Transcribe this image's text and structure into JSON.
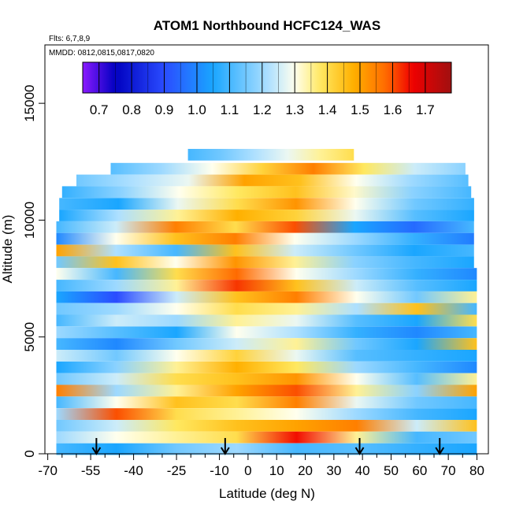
{
  "chart_data": {
    "type": "heatmap",
    "title": "ATOM1 Northbound HCFC124_WAS",
    "flights_label": "Flts: 6,7,8,9",
    "dates_label": "MMDD: 0812,0815,0817,0820",
    "xlabel": "Latitude (deg N)",
    "ylabel": "Altitude (m)",
    "xlim": [
      -71,
      84
    ],
    "ylim": [
      0,
      17500
    ],
    "x_ticks": [
      -70,
      -55,
      -40,
      -25,
      -10,
      0,
      10,
      20,
      30,
      40,
      50,
      60,
      70,
      80
    ],
    "x_ticks_minor": [
      -65,
      -60,
      -50,
      -45,
      -35,
      -30,
      -20,
      -15,
      -5,
      5,
      15,
      25,
      35,
      45,
      55,
      65,
      75
    ],
    "y_ticks": [
      0,
      5000,
      10000,
      15000
    ],
    "colorbar": {
      "ticks": [
        0.7,
        0.8,
        0.9,
        1.0,
        1.1,
        1.2,
        1.3,
        1.4,
        1.5,
        1.6,
        1.7
      ],
      "range": [
        0.65,
        1.78
      ],
      "colors": [
        "#8a1aff",
        "#0000c0",
        "#2a4cff",
        "#1aa6ff",
        "#aee0ff",
        "#ffffee",
        "#ffe860",
        "#ffb000",
        "#ff6a00",
        "#f00000",
        "#a01010"
      ],
      "stops": [
        0.65,
        0.75,
        0.9,
        1.05,
        1.22,
        1.3,
        1.38,
        1.48,
        1.58,
        1.66,
        1.78
      ]
    },
    "arrows_latitude": [
      -53,
      -8,
      39,
      67
    ],
    "rows": [
      {
        "alt": 12800,
        "x": [
          -21,
          37
        ],
        "v": [
          1.1,
          1.15,
          1.22,
          1.28,
          1.35,
          1.4
        ]
      },
      {
        "alt": 12200,
        "x": [
          -48,
          76
        ],
        "v": [
          1.12,
          1.2,
          1.3,
          1.42,
          1.55,
          1.38,
          1.25,
          1.18
        ]
      },
      {
        "alt": 11700,
        "x": [
          -60,
          77
        ],
        "v": [
          1.15,
          1.22,
          1.28,
          1.5,
          1.45,
          1.3,
          1.2,
          1.12
        ]
      },
      {
        "alt": 11200,
        "x": [
          -65,
          78
        ],
        "v": [
          1.08,
          1.18,
          1.3,
          1.38,
          1.45,
          1.32,
          1.18,
          1.1
        ]
      },
      {
        "alt": 10700,
        "x": [
          -66,
          79
        ],
        "v": [
          1.1,
          1.05,
          1.28,
          1.4,
          1.52,
          1.3,
          1.15,
          1.08
        ]
      },
      {
        "alt": 10200,
        "x": [
          -66,
          79
        ],
        "v": [
          1.05,
          1.22,
          1.35,
          1.48,
          1.42,
          1.28,
          1.12,
          1.05
        ]
      },
      {
        "alt": 9700,
        "x": [
          -67,
          79
        ],
        "v": [
          1.1,
          1.25,
          1.55,
          1.4,
          1.6,
          1.05,
          0.95,
          1.1
        ]
      },
      {
        "alt": 9200,
        "x": [
          -67,
          79
        ],
        "v": [
          1.0,
          1.3,
          1.45,
          1.55,
          1.3,
          1.2,
          1.08,
          0.98
        ]
      },
      {
        "alt": 8700,
        "x": [
          -67,
          79
        ],
        "v": [
          1.5,
          1.22,
          1.1,
          1.45,
          1.25,
          1.15,
          1.05,
          1.1
        ]
      },
      {
        "alt": 8200,
        "x": [
          -67,
          79
        ],
        "v": [
          1.15,
          1.45,
          1.3,
          1.52,
          1.35,
          1.18,
          1.1,
          1.05
        ]
      },
      {
        "alt": 7700,
        "x": [
          -67,
          80
        ],
        "v": [
          1.3,
          1.1,
          1.4,
          1.58,
          1.3,
          1.2,
          1.08,
          1.0
        ]
      },
      {
        "alt": 7200,
        "x": [
          -67,
          80
        ],
        "v": [
          1.1,
          1.2,
          1.35,
          1.62,
          1.45,
          1.25,
          1.12,
          1.05
        ]
      },
      {
        "alt": 6700,
        "x": [
          -67,
          80
        ],
        "v": [
          1.05,
          0.9,
          1.25,
          1.45,
          1.55,
          1.3,
          1.15,
          1.35
        ]
      },
      {
        "alt": 6200,
        "x": [
          -67,
          80
        ],
        "v": [
          1.15,
          1.2,
          1.3,
          1.4,
          1.35,
          1.22,
          1.45,
          1.1
        ]
      },
      {
        "alt": 5700,
        "x": [
          -67,
          80
        ],
        "v": [
          1.1,
          1.25,
          1.2,
          1.35,
          1.28,
          1.12,
          1.05,
          1.4
        ]
      },
      {
        "alt": 5200,
        "x": [
          -67,
          80
        ],
        "v": [
          1.2,
          1.12,
          1.05,
          1.3,
          1.22,
          1.08,
          1.0,
          1.1
        ]
      },
      {
        "alt": 4700,
        "x": [
          -67,
          80
        ],
        "v": [
          1.1,
          1.0,
          1.15,
          1.25,
          1.35,
          1.15,
          1.05,
          1.45
        ]
      },
      {
        "alt": 4200,
        "x": [
          -67,
          80
        ],
        "v": [
          1.25,
          1.15,
          1.3,
          1.42,
          1.28,
          1.12,
          1.08,
          1.05
        ]
      },
      {
        "alt": 3700,
        "x": [
          -67,
          80
        ],
        "v": [
          1.05,
          1.18,
          1.35,
          1.48,
          1.38,
          1.2,
          1.1,
          1.0
        ]
      },
      {
        "alt": 3200,
        "x": [
          -67,
          80
        ],
        "v": [
          1.15,
          1.25,
          1.4,
          1.45,
          1.52,
          1.3,
          1.12,
          1.35
        ]
      },
      {
        "alt": 2700,
        "x": [
          -67,
          80
        ],
        "v": [
          1.55,
          1.2,
          1.35,
          1.5,
          1.6,
          1.35,
          1.18,
          1.5
        ]
      },
      {
        "alt": 2200,
        "x": [
          -67,
          80
        ],
        "v": [
          1.1,
          1.3,
          1.45,
          1.4,
          1.55,
          1.28,
          1.15,
          1.1
        ]
      },
      {
        "alt": 1700,
        "x": [
          -67,
          80
        ],
        "v": [
          1.2,
          1.6,
          1.4,
          1.35,
          1.3,
          1.2,
          1.1,
          1.05
        ]
      },
      {
        "alt": 1200,
        "x": [
          -67,
          80
        ],
        "v": [
          1.15,
          1.25,
          1.38,
          1.45,
          1.5,
          1.55,
          1.25,
          1.45
        ]
      },
      {
        "alt": 700,
        "x": [
          -67,
          80
        ],
        "v": [
          1.2,
          1.3,
          1.35,
          1.4,
          1.65,
          1.35,
          1.1,
          1.15
        ]
      },
      {
        "alt": 200,
        "x": [
          -67,
          80
        ],
        "v": [
          1.1,
          1.05,
          1.15,
          1.2,
          1.1,
          1.12,
          1.08,
          1.05
        ]
      }
    ]
  }
}
